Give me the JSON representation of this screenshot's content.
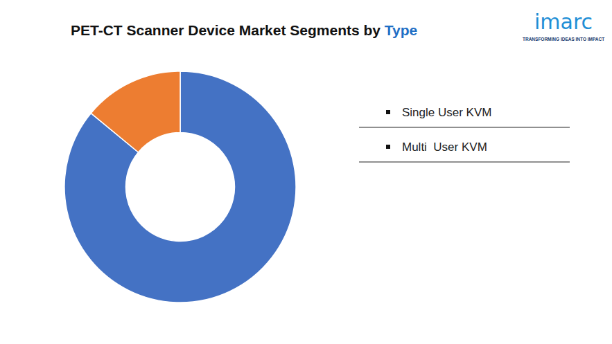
{
  "chart_data": {
    "type": "pie",
    "title": "PET-CT Scanner Device Market Segments by Type",
    "categories": [
      "Single User KVM",
      "Multi  User KVM"
    ],
    "values": [
      86,
      14
    ],
    "colors": [
      "#4472c4",
      "#ed7d31"
    ],
    "legend": "right",
    "data_labels": false,
    "logo": {
      "text": "imarc",
      "tagline": "TRANSFORMING IDEAS INTO IMPACT"
    }
  }
}
